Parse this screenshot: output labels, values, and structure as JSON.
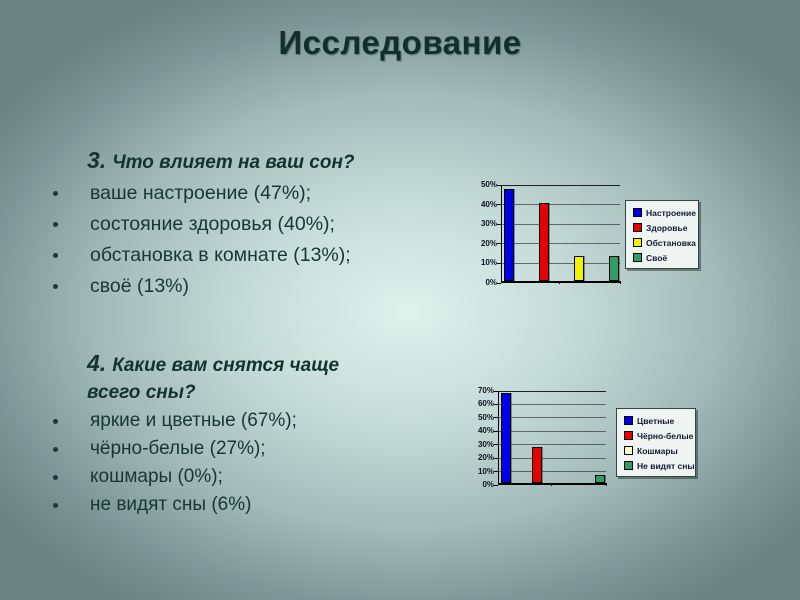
{
  "slide": {
    "title": "Исследование",
    "text_color": "#173533",
    "background_center": "#dff2ec",
    "background_edge": "#6d8384"
  },
  "sections": [
    {
      "number": "3.",
      "question": "Что влияет на ваш сон?",
      "items": [
        "ваше настроение (47%);",
        "состояние здоровья (40%);",
        "обстановка в комнате (13%);",
        "своё (13%)"
      ]
    },
    {
      "number": "4.",
      "question": "Какие вам снятся чаще всего сны?",
      "items": [
        "яркие и цветные (67%);",
        "чёрно-белые (27%);",
        "кошмары (0%);",
        "не видят сны (6%)"
      ]
    }
  ],
  "chart_data": [
    {
      "type": "bar",
      "title": "",
      "categories": [
        "Настроение",
        "Здоровье",
        "Обстановка",
        "Своё"
      ],
      "values": [
        47,
        40,
        13,
        13
      ],
      "colors": [
        "#0000e6",
        "#e60000",
        "#f2f200",
        "#2e9e66"
      ],
      "xlabel": "",
      "ylabel": "",
      "ylim": [
        0,
        50
      ],
      "yticks": [
        "0%",
        "10%",
        "20%",
        "30%",
        "40%",
        "50%"
      ],
      "grid": true,
      "legend_position": "right"
    },
    {
      "type": "bar",
      "title": "",
      "categories": [
        "Цветные",
        "Чёрно-белые",
        "Кошмары",
        "Не видят сны"
      ],
      "values": [
        67,
        27,
        0,
        6
      ],
      "colors": [
        "#0000e6",
        "#e60000",
        "#ffffcc",
        "#2e9e66"
      ],
      "xlabel": "",
      "ylabel": "",
      "ylim": [
        0,
        70
      ],
      "yticks": [
        "0%",
        "10%",
        "20%",
        "30%",
        "40%",
        "50%",
        "60%",
        "70%"
      ],
      "grid": true,
      "legend_position": "right"
    }
  ]
}
